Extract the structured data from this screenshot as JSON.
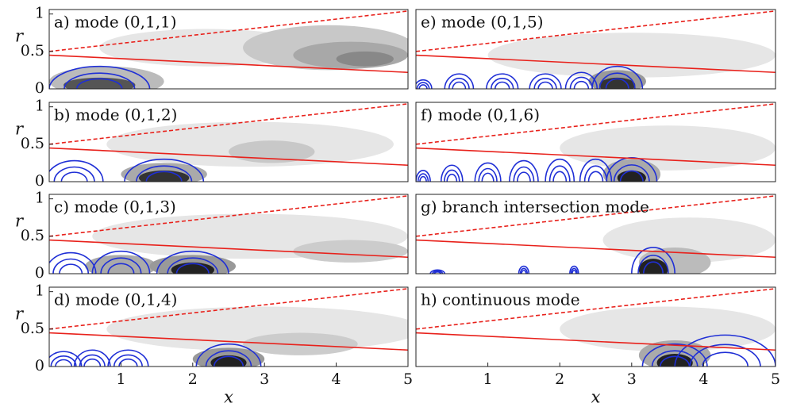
{
  "chart_data": [
    {
      "type": "contour",
      "title": "a) mode (0,1,1)",
      "ylabel": "r",
      "xlim": [
        0,
        5
      ],
      "ylim": [
        0,
        1.06
      ],
      "yticks": [
        0,
        0.5,
        1
      ],
      "lines": [
        {
          "x": [
            0,
            5
          ],
          "values": [
            0.5,
            1.04
          ],
          "color": "#e8211b",
          "dashed": true
        },
        {
          "x": [
            0,
            5
          ],
          "values": [
            0.45,
            0.22
          ],
          "color": "#e8211b",
          "dashed": false
        }
      ]
    },
    {
      "type": "contour",
      "title": "e) mode (0,1,5)",
      "xlim": [
        0,
        5
      ],
      "ylim": [
        0,
        1.06
      ],
      "lines": [
        {
          "x": [
            0,
            5
          ],
          "values": [
            0.5,
            1.04
          ],
          "color": "#e8211b",
          "dashed": true
        },
        {
          "x": [
            0,
            5
          ],
          "values": [
            0.45,
            0.22
          ],
          "color": "#e8211b",
          "dashed": false
        }
      ]
    },
    {
      "type": "contour",
      "title": "b) mode (0,1,2)",
      "ylabel": "r",
      "xlim": [
        0,
        5
      ],
      "ylim": [
        0,
        1.06
      ],
      "yticks": [
        0,
        0.5,
        1
      ],
      "lines": [
        {
          "x": [
            0,
            5
          ],
          "values": [
            0.5,
            1.04
          ],
          "color": "#e8211b",
          "dashed": true
        },
        {
          "x": [
            0,
            5
          ],
          "values": [
            0.45,
            0.22
          ],
          "color": "#e8211b",
          "dashed": false
        }
      ]
    },
    {
      "type": "contour",
      "title": "f) mode (0,1,6)",
      "xlim": [
        0,
        5
      ],
      "ylim": [
        0,
        1.06
      ],
      "lines": [
        {
          "x": [
            0,
            5
          ],
          "values": [
            0.5,
            1.04
          ],
          "color": "#e8211b",
          "dashed": true
        },
        {
          "x": [
            0,
            5
          ],
          "values": [
            0.45,
            0.22
          ],
          "color": "#e8211b",
          "dashed": false
        }
      ]
    },
    {
      "type": "contour",
      "title": "c) mode (0,1,3)",
      "ylabel": "r",
      "xlim": [
        0,
        5
      ],
      "ylim": [
        0,
        1.06
      ],
      "yticks": [
        0,
        0.5,
        1
      ],
      "lines": [
        {
          "x": [
            0,
            5
          ],
          "values": [
            0.5,
            1.04
          ],
          "color": "#e8211b",
          "dashed": true
        },
        {
          "x": [
            0,
            5
          ],
          "values": [
            0.45,
            0.22
          ],
          "color": "#e8211b",
          "dashed": false
        }
      ]
    },
    {
      "type": "contour",
      "title": "g) branch intersection mode",
      "xlim": [
        0,
        5
      ],
      "ylim": [
        0,
        1.06
      ],
      "lines": [
        {
          "x": [
            0,
            5
          ],
          "values": [
            0.5,
            1.04
          ],
          "color": "#e8211b",
          "dashed": true
        },
        {
          "x": [
            0,
            5
          ],
          "values": [
            0.45,
            0.22
          ],
          "color": "#e8211b",
          "dashed": false
        }
      ]
    },
    {
      "type": "contour",
      "title": "d) mode (0,1,4)",
      "ylabel": "r",
      "xlabel": "x",
      "xlim": [
        0,
        5
      ],
      "ylim": [
        0,
        1.06
      ],
      "yticks": [
        0,
        0.5,
        1
      ],
      "xticks": [
        1,
        2,
        3,
        4,
        5
      ],
      "lines": [
        {
          "x": [
            0,
            5
          ],
          "values": [
            0.5,
            1.04
          ],
          "color": "#e8211b",
          "dashed": true
        },
        {
          "x": [
            0,
            5
          ],
          "values": [
            0.45,
            0.22
          ],
          "color": "#e8211b",
          "dashed": false
        }
      ]
    },
    {
      "type": "contour",
      "title": "h) continuous mode",
      "xlabel": "x",
      "xlim": [
        0,
        5
      ],
      "ylim": [
        0,
        1.06
      ],
      "xticks": [
        1,
        2,
        3,
        4,
        5
      ],
      "lines": [
        {
          "x": [
            0,
            5
          ],
          "values": [
            0.5,
            1.04
          ],
          "color": "#e8211b",
          "dashed": true
        },
        {
          "x": [
            0,
            5
          ],
          "values": [
            0.45,
            0.22
          ],
          "color": "#e8211b",
          "dashed": false
        }
      ]
    }
  ]
}
